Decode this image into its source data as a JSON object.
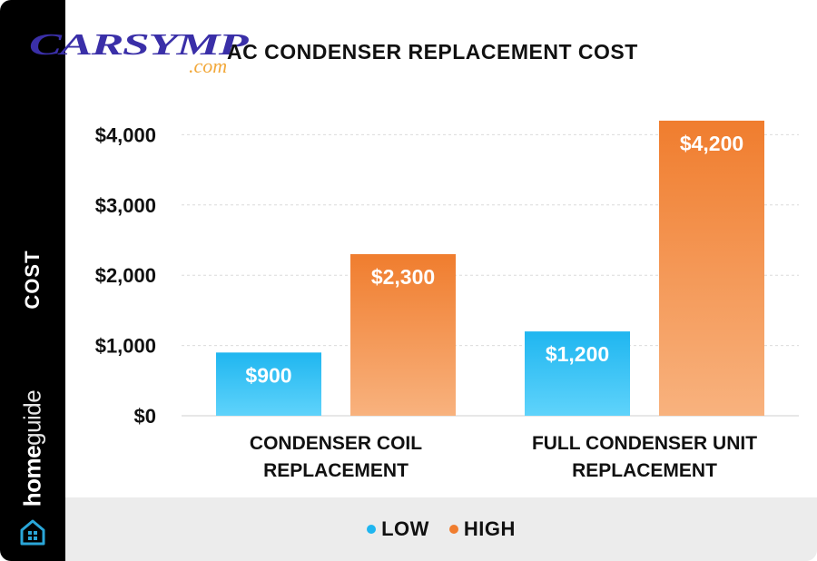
{
  "watermark": {
    "main": "CARSYMP",
    "sub": ".com"
  },
  "sidebar": {
    "axis_label": "COST",
    "brand_bold": "home",
    "brand_light": "guide"
  },
  "chart_data": {
    "type": "bar",
    "title": "AC CONDENSER REPLACEMENT COST",
    "ylabel": "COST",
    "xlabel": "",
    "categories": [
      "CONDENSER COIL REPLACEMENT",
      "FULL CONDENSER UNIT REPLACEMENT"
    ],
    "category_lines": [
      [
        "CONDENSER COIL",
        "REPLACEMENT"
      ],
      [
        "FULL CONDENSER UNIT",
        "REPLACEMENT"
      ]
    ],
    "series": [
      {
        "name": "LOW",
        "values": [
          900,
          1200
        ],
        "labels": [
          "$900",
          "$1,200"
        ],
        "color_top": "#1fb6f0",
        "color_bottom": "#5fd3fb"
      },
      {
        "name": "HIGH",
        "values": [
          2300,
          4200
        ],
        "labels": [
          "$2,300",
          "$4,200"
        ],
        "color_top": "#f07d2e",
        "color_bottom": "#f8b27e"
      }
    ],
    "ylim": [
      0,
      4200
    ],
    "yticks": [
      0,
      1000,
      2000,
      3000,
      4000
    ],
    "ytick_labels": [
      "$0",
      "$1,000",
      "$2,000",
      "$3,000",
      "$4,000"
    ],
    "grid": true,
    "legend_position": "bottom",
    "legend_colors": {
      "LOW": "#1fb6f0",
      "HIGH": "#f07d2e"
    }
  }
}
